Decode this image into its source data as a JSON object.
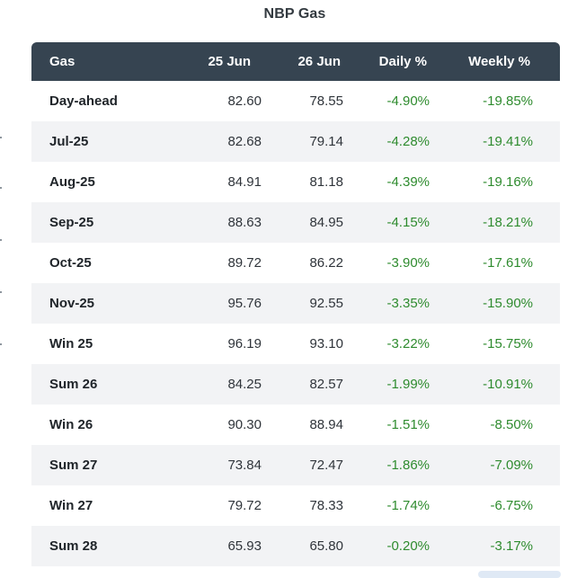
{
  "title": "NBP Gas",
  "columns": {
    "gas": "Gas",
    "d1": "25 Jun",
    "d2": "26 Jun",
    "daily": "Daily %",
    "weekly": "Weekly %"
  },
  "rows": [
    {
      "name": "Day-ahead",
      "d1": "82.60",
      "d2": "78.55",
      "daily": "-4.90%",
      "weekly": "-19.85%"
    },
    {
      "name": "Jul-25",
      "d1": "82.68",
      "d2": "79.14",
      "daily": "-4.28%",
      "weekly": "-19.41%"
    },
    {
      "name": "Aug-25",
      "d1": "84.91",
      "d2": "81.18",
      "daily": "-4.39%",
      "weekly": "-19.16%"
    },
    {
      "name": "Sep-25",
      "d1": "88.63",
      "d2": "84.95",
      "daily": "-4.15%",
      "weekly": "-18.21%"
    },
    {
      "name": "Oct-25",
      "d1": "89.72",
      "d2": "86.22",
      "daily": "-3.90%",
      "weekly": "-17.61%"
    },
    {
      "name": "Nov-25",
      "d1": "95.76",
      "d2": "92.55",
      "daily": "-3.35%",
      "weekly": "-15.90%"
    },
    {
      "name": "Win 25",
      "d1": "96.19",
      "d2": "93.10",
      "daily": "-3.22%",
      "weekly": "-15.75%"
    },
    {
      "name": "Sum 26",
      "d1": "84.25",
      "d2": "82.57",
      "daily": "-1.99%",
      "weekly": "-10.91%"
    },
    {
      "name": "Win 26",
      "d1": "90.30",
      "d2": "88.94",
      "daily": "-1.51%",
      "weekly": "-8.50%"
    },
    {
      "name": "Sum 27",
      "d1": "73.84",
      "d2": "72.47",
      "daily": "-1.86%",
      "weekly": "-7.09%"
    },
    {
      "name": "Win 27",
      "d1": "79.72",
      "d2": "78.33",
      "daily": "-1.74%",
      "weekly": "-6.75%"
    },
    {
      "name": "Sum 28",
      "d1": "65.93",
      "d2": "65.80",
      "daily": "-0.20%",
      "weekly": "-3.17%"
    }
  ],
  "colors": {
    "header_bg": "#364451",
    "stripe_bg": "#f2f3f5",
    "change_text": "#2e8b2e"
  }
}
